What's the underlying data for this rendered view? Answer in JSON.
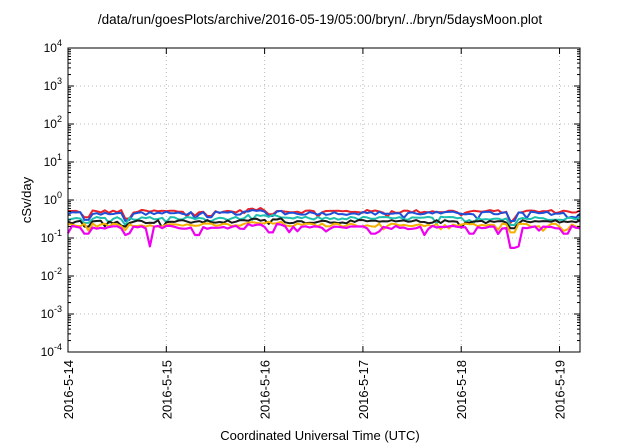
{
  "chart_data": {
    "type": "line",
    "title": "/data/run/goesPlots/archive/2016-05-19/05:00/bryn/../bryn/5daysMoon.plot",
    "xlabel": "Coordinated Universal Time (UTC)",
    "ylabel": "cSv/day",
    "y_scale": "log",
    "ylim": [
      0.0001,
      10000
    ],
    "y_ticks": [
      {
        "value": 0.0001,
        "base": "10",
        "exp": "-4"
      },
      {
        "value": 0.001,
        "base": "10",
        "exp": "-3"
      },
      {
        "value": 0.01,
        "base": "10",
        "exp": "-2"
      },
      {
        "value": 0.1,
        "base": "10",
        "exp": "-1"
      },
      {
        "value": 1,
        "base": "10",
        "exp": "0"
      },
      {
        "value": 10,
        "base": "10",
        "exp": "1"
      },
      {
        "value": 100,
        "base": "10",
        "exp": "2"
      },
      {
        "value": 1000,
        "base": "10",
        "exp": "3"
      },
      {
        "value": 10000,
        "base": "10",
        "exp": "4"
      }
    ],
    "x_start": "2016-05-14T00:00",
    "x_end": "2016-05-19T05:00",
    "x_ticks": [
      {
        "label": "2016-5-14",
        "date": "2016-05-14T00:00"
      },
      {
        "label": "2016-5-15",
        "date": "2016-05-15T00:00"
      },
      {
        "label": "2016-5-16",
        "date": "2016-05-16T00:00"
      },
      {
        "label": "2016-5-17",
        "date": "2016-05-17T00:00"
      },
      {
        "label": "2016-5-18",
        "date": "2016-05-18T00:00"
      },
      {
        "label": "2016-5-19",
        "date": "2016-05-19T00:00"
      }
    ],
    "grid": true,
    "series": [
      {
        "color": "#e8202a",
        "level": 0.5,
        "dips": [
          [
            0.2,
            0.35
          ],
          [
            0.58,
            0.32
          ],
          [
            0.61,
            0.33
          ],
          [
            1.45,
            0.38
          ],
          [
            2.05,
            0.42
          ],
          [
            4.53,
            0.33
          ]
        ]
      },
      {
        "color": "#1e4fd8",
        "level": 0.45,
        "dips": [
          [
            0.2,
            0.3
          ],
          [
            0.58,
            0.28
          ],
          [
            0.61,
            0.3
          ],
          [
            1.45,
            0.35
          ],
          [
            2.05,
            0.38
          ],
          [
            4.53,
            0.28
          ]
        ]
      },
      {
        "color": "#1fbfb0",
        "level": 0.33,
        "dips": [
          [
            0.2,
            0.25
          ],
          [
            0.58,
            0.22
          ],
          [
            1.45,
            0.28
          ],
          [
            4.53,
            0.22
          ]
        ]
      },
      {
        "color": "#1a1a1a",
        "level": 0.27,
        "dips": [
          [
            0.2,
            0.2
          ],
          [
            0.58,
            0.2
          ],
          [
            4.53,
            0.18
          ]
        ]
      },
      {
        "color": "#f5b000",
        "level": 0.22,
        "dips": [
          [
            0.58,
            0.16
          ],
          [
            4.53,
            0.14
          ]
        ]
      },
      {
        "color": "#f000f0",
        "level": 0.19,
        "dips": [
          [
            0.2,
            0.13
          ],
          [
            0.58,
            0.12
          ],
          [
            0.83,
            0.06
          ],
          [
            1.3,
            0.12
          ],
          [
            2.05,
            0.14
          ],
          [
            3.1,
            0.13
          ],
          [
            3.63,
            0.12
          ],
          [
            4.1,
            0.13
          ],
          [
            4.53,
            0.055
          ],
          [
            4.55,
            0.06
          ],
          [
            5.07,
            0.13
          ]
        ]
      }
    ]
  }
}
